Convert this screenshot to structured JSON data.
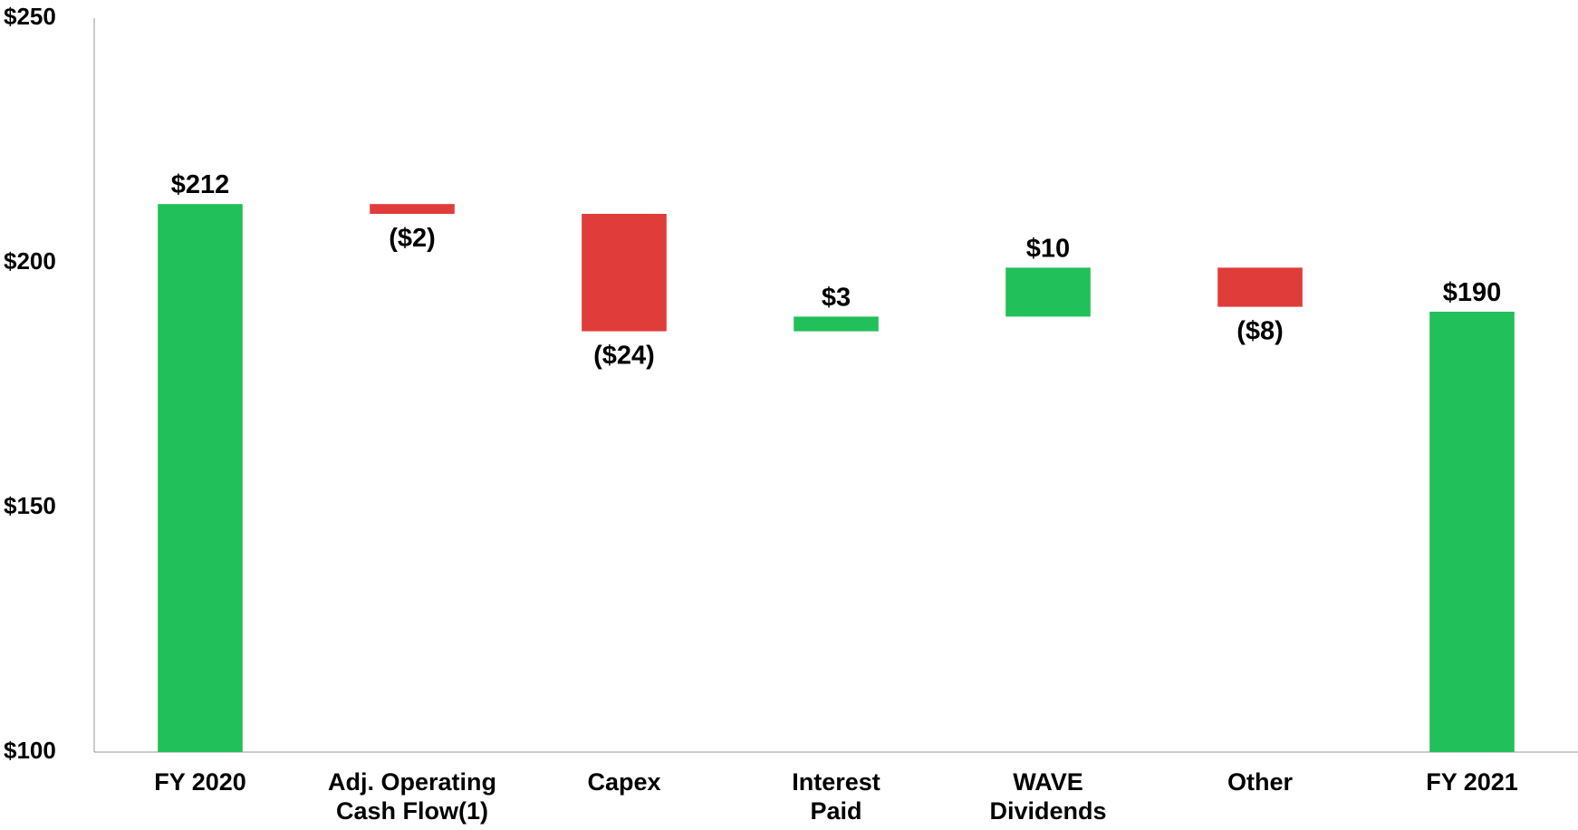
{
  "chart_data": {
    "type": "waterfall",
    "categories": [
      "FY 2020",
      "Adj. Operating\nCash Flow(1)",
      "Capex",
      "Interest\nPaid",
      "WAVE\nDividends",
      "Other",
      "FY 2021"
    ],
    "values": [
      212,
      -2,
      -24,
      3,
      10,
      -8,
      190
    ],
    "value_labels": [
      "$212",
      "($2)",
      "($24)",
      "$3",
      "$10",
      "($8)",
      "$190"
    ],
    "totals": [
      true,
      false,
      false,
      false,
      false,
      false,
      true
    ],
    "colors": {
      "increase": "#22c05a",
      "decrease": "#e03c3a",
      "total": "#22c05a"
    },
    "ylim": [
      100,
      250
    ],
    "yticks": [
      {
        "value": 100,
        "label": "$100"
      },
      {
        "value": 150,
        "label": "$150"
      },
      {
        "value": 200,
        "label": "$200"
      },
      {
        "value": 250,
        "label": "$250"
      }
    ],
    "grid": false
  }
}
